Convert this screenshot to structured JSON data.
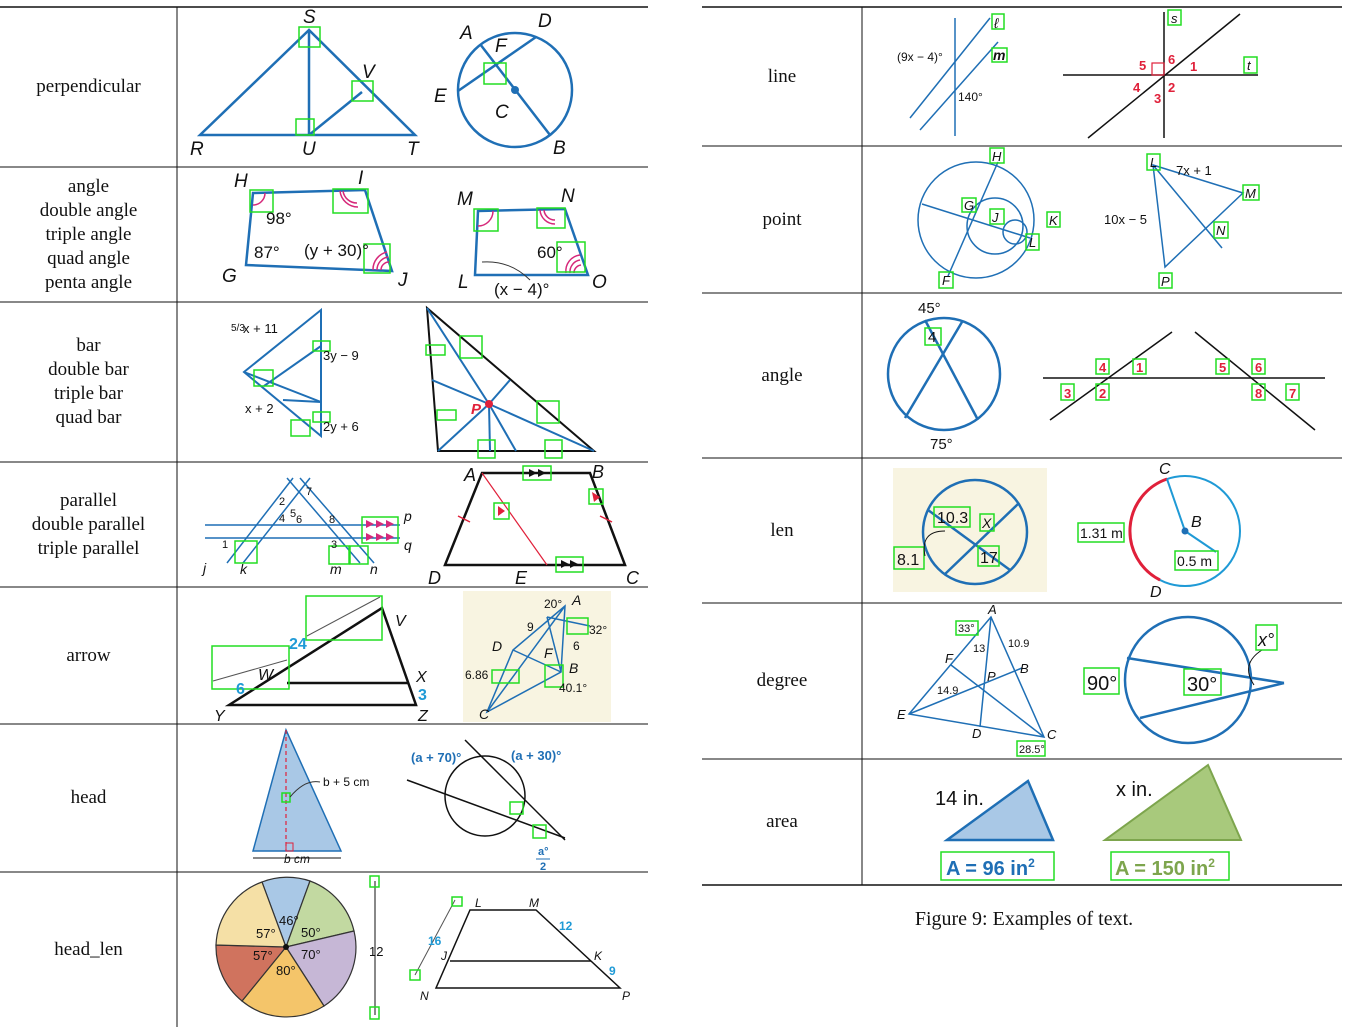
{
  "left_table": {
    "rows": [
      {
        "category": [
          "perpendicular"
        ],
        "labels": {
          "S": "S",
          "R": "R",
          "U": "U",
          "T": "T",
          "V": "V",
          "A": "A",
          "D": "D",
          "F": "F",
          "E": "E",
          "C": "C",
          "B": "B"
        }
      },
      {
        "category": [
          "angle",
          "double angle",
          "triple angle",
          "quad angle",
          "penta angle"
        ],
        "labels": {
          "H": "H",
          "I": "I",
          "G": "G",
          "J": "J",
          "a98": "98°",
          "a87": "87°",
          "ay30": "(y + 30)°",
          "M": "M",
          "N": "N",
          "L": "L",
          "O": "O",
          "a60": "60°",
          "ax4": "(x − 4)°"
        }
      },
      {
        "category": [
          "bar",
          "double bar",
          "triple bar",
          "quad bar"
        ],
        "labels": {
          "e1": "x + 11",
          "e1f": "5/3",
          "e2": "3y − 9",
          "e3": "x + 2",
          "e4": "2y + 6",
          "P": "P"
        }
      },
      {
        "category": [
          "parallel",
          "double parallel",
          "triple parallel"
        ],
        "labels": {
          "p": "p",
          "q": "q",
          "j": "j",
          "k": "k",
          "m": "m",
          "n": "n",
          "n1": "1",
          "n2": "2",
          "n3": "3",
          "n4": "4",
          "n5": "5",
          "n6": "6",
          "n7": "7",
          "n8": "8",
          "A": "A",
          "B": "B",
          "D": "D",
          "E": "E",
          "C": "C"
        }
      },
      {
        "category": [
          "arrow"
        ],
        "labels": {
          "n24": "24",
          "W": "W",
          "n6": "6",
          "X": "X",
          "n3": "3",
          "Y": "Y",
          "Z": "Z",
          "V": "V",
          "a20": "20°",
          "A": "A",
          "a32": "32°",
          "n9": "9",
          "n6b": "6",
          "D": "D",
          "F": "F",
          "B": "B",
          "n686": "6.86",
          "a401": "40.1°",
          "C": "C"
        }
      },
      {
        "category": [
          "head"
        ],
        "labels": {
          "b5": "b + 5 cm",
          "bcm": "b cm",
          "a70": "(a + 70)°",
          "a30": "(a + 30)°",
          "a2n": "a°",
          "a2d": "2"
        }
      },
      {
        "category": [
          "head_len"
        ],
        "labels": {
          "p46": "46°",
          "p57a": "57°",
          "p50": "50°",
          "p57b": "57°",
          "p70": "70°",
          "p80": "80°",
          "n12": "12",
          "L": "L",
          "M": "M",
          "n16": "16",
          "n12b": "12",
          "J": "J",
          "K": "K",
          "n9": "9",
          "N": "N",
          "P": "P"
        }
      }
    ]
  },
  "right_table": {
    "rows": [
      {
        "category": [
          "line"
        ],
        "labels": {
          "e1": "(9x − 4)°",
          "a140": "140°",
          "ell": "ℓ",
          "m": "m",
          "s": "s",
          "t": "t",
          "n1": "1",
          "n2": "2",
          "n3": "3",
          "n4": "4",
          "n5": "5",
          "n6": "6"
        }
      },
      {
        "category": [
          "point"
        ],
        "labels": {
          "H": "H",
          "G": "G",
          "J": "J",
          "K": "K",
          "L": "L",
          "F": "F",
          "L2": "L",
          "e7": "7x + 1",
          "M": "M",
          "e10": "10x − 5",
          "N": "N",
          "P": "P"
        }
      },
      {
        "category": [
          "angle"
        ],
        "labels": {
          "a45": "45°",
          "n4": "4",
          "a75": "75°",
          "n1": "1",
          "n2": "2",
          "n3": "3",
          "n4b": "4",
          "n5": "5",
          "n6": "6",
          "n7": "7",
          "n8": "8"
        }
      },
      {
        "category": [
          "len"
        ],
        "labels": {
          "v103": "10.3",
          "X": "X",
          "v81": "8.1",
          "v17": "17",
          "C": "C",
          "B": "B",
          "v131": "1.31 m",
          "v05": "0.5 m",
          "D": "D"
        }
      },
      {
        "category": [
          "degree"
        ],
        "labels": {
          "A": "A",
          "a33": "33°",
          "n13": "13",
          "n109": "10.9",
          "F": "F",
          "B": "B",
          "P": "P",
          "n149": "14.9",
          "E": "E",
          "D": "D",
          "C": "C",
          "a285": "28.5°",
          "a90": "90°",
          "a30": "30°",
          "x": "x°"
        }
      },
      {
        "category": [
          "area"
        ],
        "labels": {
          "in14": "14 in.",
          "xin": "x in.",
          "area1": "A = 96 in",
          "area2": "A = 150 in",
          "sup": "2"
        }
      }
    ]
  },
  "caption": "Figure 9: Examples of text.",
  "colors": {
    "figure_blue": "#1f6fb5",
    "box_green": "#22dd22",
    "mark_red": "#e0203a",
    "fill_blue": "#a9c8e6",
    "fill_green": "#a8c97c",
    "beige": "#f8f4e1"
  }
}
